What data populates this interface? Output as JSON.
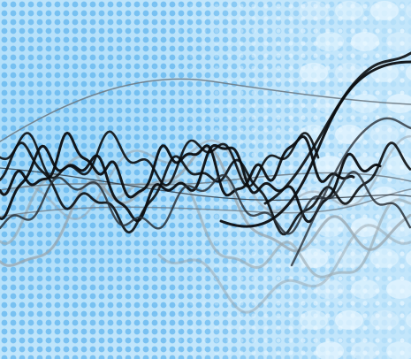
{
  "scene": {
    "subject": "abstract-waveforms",
    "background": {
      "base": "#c3e6fb",
      "dot_dark": "#5fb4ef",
      "dot_light": "#e9f7ff",
      "oval": "#eaf7ff",
      "left_glow": "#8ccdf6"
    },
    "line_colors": {
      "black": "#0b0d10",
      "dark_gray": "#2a3138",
      "mid_gray": "#6d7a84",
      "light_gray": "#9aa6ae"
    }
  }
}
